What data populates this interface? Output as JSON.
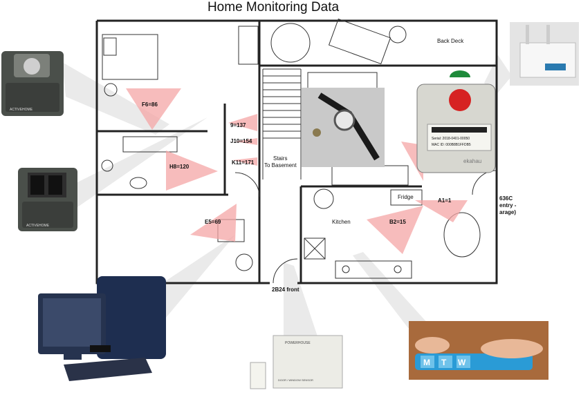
{
  "title": "Home Monitoring Data",
  "rooms": {
    "back_deck": "Back Deck",
    "stairs": "Stairs",
    "stairs_sub": "To Basement",
    "fridge": "Fridge",
    "kitchen": "Kitchen",
    "front": "2B24 front",
    "entry_code": "636C",
    "entry_l1": "entry -",
    "entry_l2": "arage)"
  },
  "sensors": {
    "f6": "F6=86",
    "h8": "H8=120",
    "e5": "E5=69",
    "s9": "9=137",
    "j10": "J10=154",
    "k11": "K11=171",
    "b2": "B2=15",
    "a1": "A1=1"
  },
  "device_text": {
    "tag_serial": "Serial: 2018-0401-00050",
    "tag_mac": "MAC ID: 000B8B1FFDB5",
    "tag_brand": "ekahau",
    "pill_days": [
      "M",
      "T",
      "W"
    ],
    "contact_brand": "POWERHOUSE",
    "contact_caption": "DOOR / WINDOW SENSOR",
    "motion_brand": "ACTIVEHOME"
  },
  "colors": {
    "sensor_zone": "#f4a6a6",
    "wall": "#222222"
  }
}
